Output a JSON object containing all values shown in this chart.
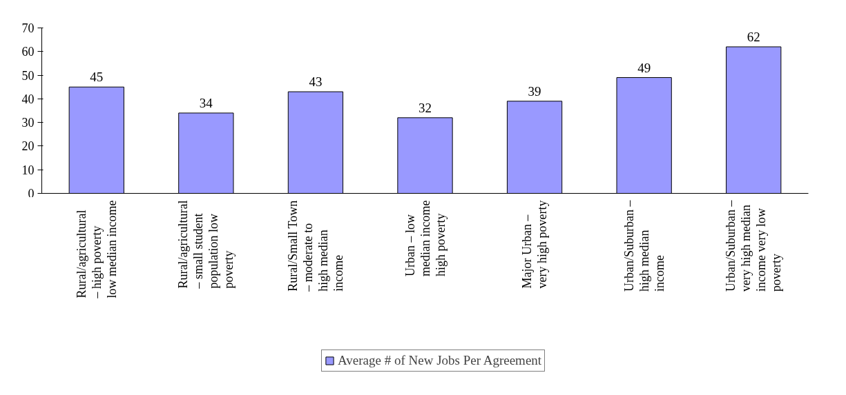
{
  "chart_data": {
    "type": "bar",
    "categories": [
      "Rural/agricultural – high poverty low median income",
      "Rural/agricultural – small student population low poverty",
      "Rural/Small Town – moderate to high median income",
      "Urban – low median income high poverty",
      "Major Urban – very high poverty",
      "Urban/Suburban – high median income",
      "Urban/Suburban – very high median income very low poverty"
    ],
    "series": [
      {
        "name": "Average # of New Jobs Per Agreement",
        "color": "#9999ff",
        "values": [
          45,
          34,
          43,
          32,
          39,
          49,
          62
        ]
      }
    ],
    "ylim": [
      0,
      70
    ],
    "yticks": [
      0,
      10,
      20,
      30,
      40,
      50,
      60,
      70
    ],
    "grid": false,
    "legend": "bottom",
    "data_labels": true
  }
}
